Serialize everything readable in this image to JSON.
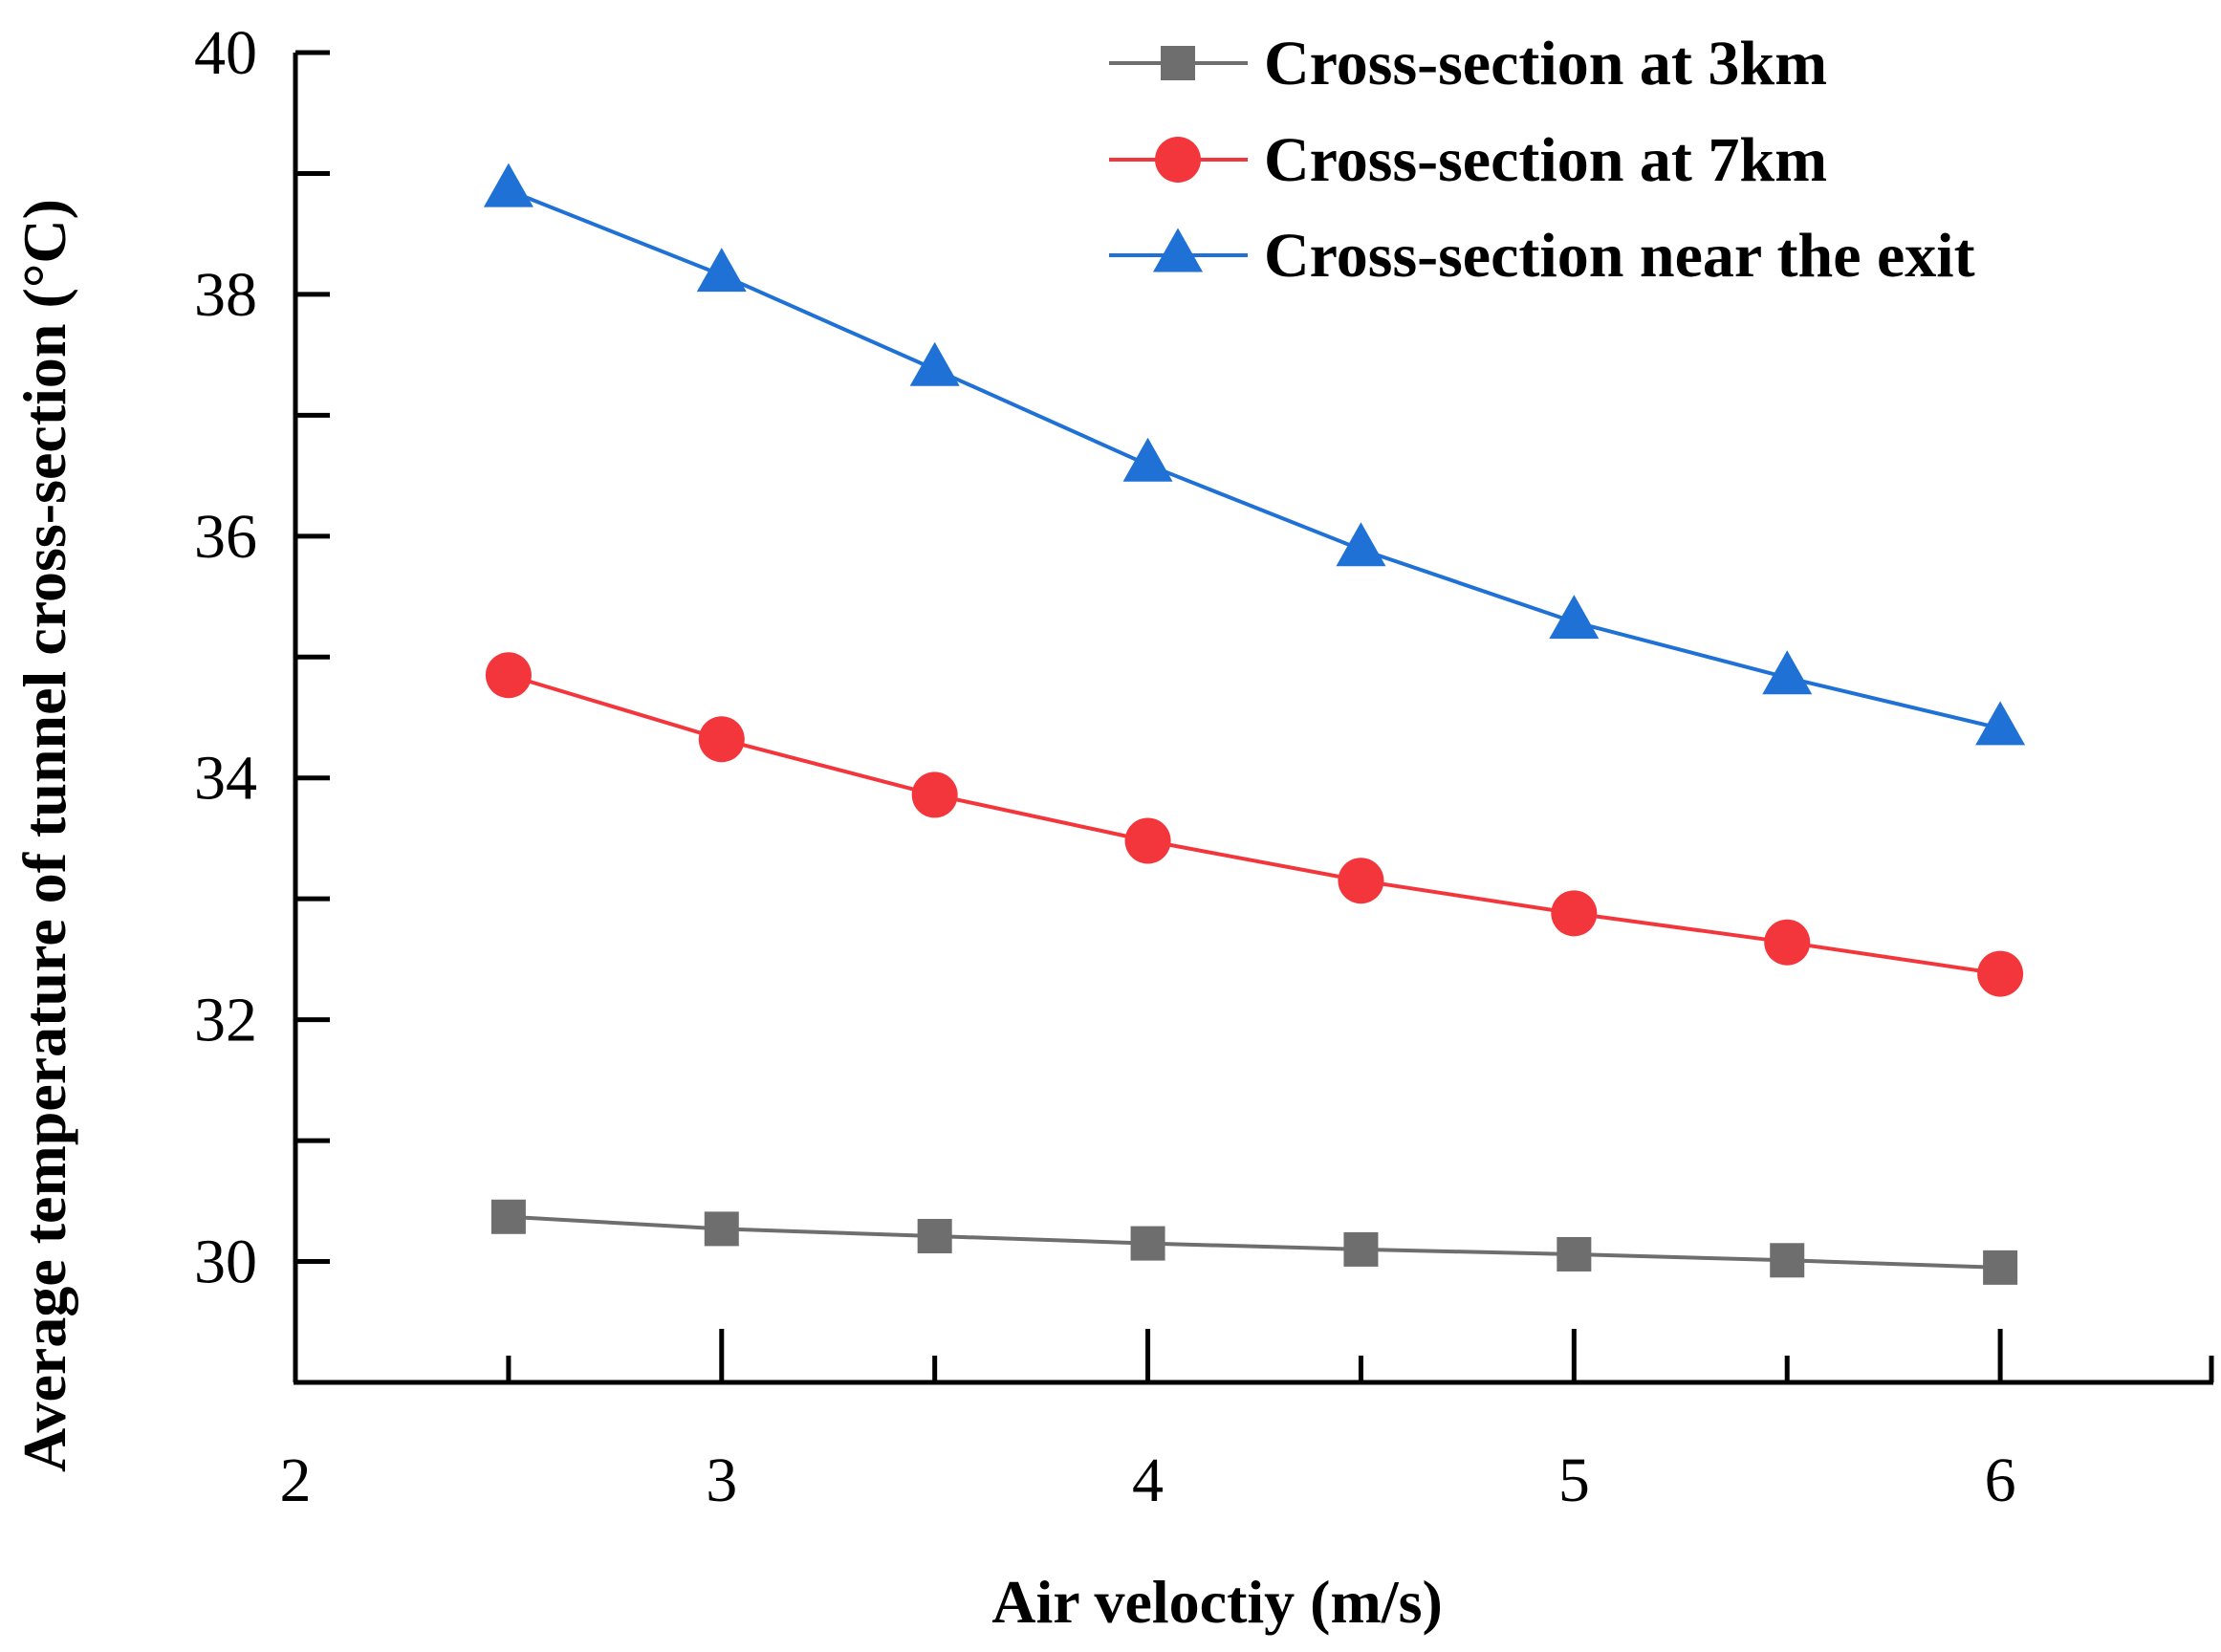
{
  "chart_data": {
    "type": "line",
    "title": "",
    "xlabel": "Air velocity (m/s)",
    "xlabel_display": "Air veloctiy (m/s)",
    "ylabel": "Average temperature of tunnel cross-section  (°C)",
    "xlim": [
      2,
      6.5
    ],
    "ylim": [
      29,
      40
    ],
    "x_ticks": [
      2,
      3,
      4,
      5,
      6
    ],
    "x_minor_ticks": [
      2.5,
      3.5,
      4.5,
      5.5
    ],
    "y_ticks": [
      30,
      32,
      34,
      36,
      38,
      40
    ],
    "y_minor_ticks": [
      31,
      33,
      35,
      37,
      39
    ],
    "grid": false,
    "legend_position": "top-right",
    "x": [
      2.5,
      3,
      3.5,
      4,
      4.5,
      5,
      5.5,
      6
    ],
    "series": [
      {
        "name": "Cross-section at 3km",
        "color": "#6e6e6e",
        "marker": "square",
        "values": [
          30.37,
          30.27,
          30.21,
          30.15,
          30.1,
          30.06,
          30.01,
          29.95
        ]
      },
      {
        "name": "Cross-section at 7km",
        "color": "#f2363c",
        "marker": "circle",
        "values": [
          34.85,
          34.32,
          33.86,
          33.48,
          33.15,
          32.88,
          32.64,
          32.38
        ]
      },
      {
        "name": "Cross-section near the exit",
        "color": "#1f71d6",
        "marker": "triangle",
        "values": [
          38.86,
          38.16,
          37.38,
          36.59,
          35.89,
          35.29,
          34.83,
          34.41
        ]
      }
    ]
  }
}
